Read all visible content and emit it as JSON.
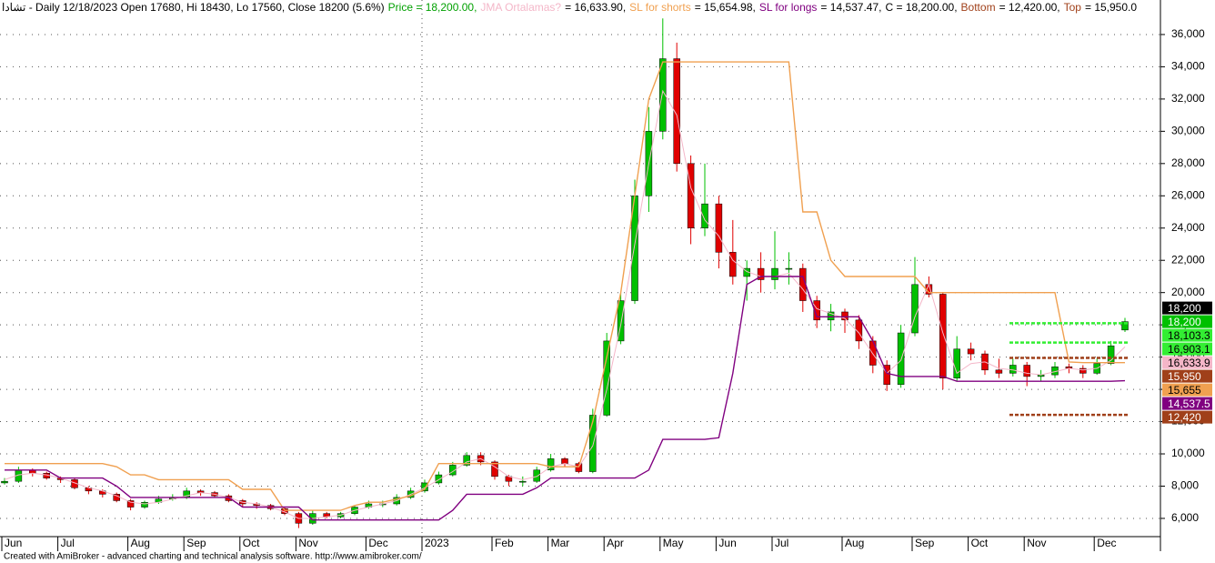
{
  "chart_data": {
    "type": "candlestick",
    "header": [
      {
        "text": "تشادا - Daily 12/18/2023 Open 17680, Hi 18430, Lo 17560, Close 18200 (5.6%)",
        "color": "#000000"
      },
      {
        "text": "Price = 18,200.00,",
        "color": "#00a000"
      }
    ],
    "header_tail": [
      {
        "text": "C = 18,200.00,",
        "color": "#000000"
      },
      {
        "text": "Bottom",
        "color": "#a0401a"
      },
      {
        "text": "= 12,420.00,",
        "color": "#000000"
      },
      {
        "text": "Top",
        "color": "#a0401a"
      },
      {
        "text": "= 15,950.0",
        "color": "#000000"
      }
    ],
    "footer": "Created with AmiBroker - advanced charting and technical analysis software. http://www.amibroker.com/",
    "categories": [
      "Jun",
      null,
      null,
      null,
      "Jul",
      null,
      null,
      null,
      null,
      "Aug",
      null,
      null,
      null,
      "Sep",
      null,
      null,
      null,
      "Oct",
      null,
      null,
      null,
      "Nov",
      null,
      null,
      null,
      null,
      "Dec",
      null,
      null,
      null,
      "2023",
      null,
      null,
      null,
      null,
      "Feb",
      null,
      null,
      null,
      "Mar",
      null,
      null,
      null,
      "Apr",
      null,
      null,
      null,
      "May",
      null,
      null,
      null,
      "Jun",
      null,
      null,
      null,
      "Jul",
      null,
      null,
      null,
      null,
      "Aug",
      null,
      null,
      null,
      null,
      "Sep",
      null,
      null,
      null,
      "Oct",
      null,
      null,
      null,
      "Nov",
      null,
      null,
      null,
      null,
      "Dec",
      null,
      null
    ],
    "open": [
      8200,
      8300,
      9000,
      8800,
      8500,
      8400,
      7900,
      7700,
      7500,
      7100,
      6700,
      7000,
      7200,
      7300,
      7700,
      7600,
      7400,
      7100,
      6900,
      6800,
      6600,
      6300,
      5700,
      6300,
      6100,
      6300,
      6700,
      6900,
      6900,
      7300,
      7700,
      8200,
      8700,
      9300,
      9900,
      9500,
      8600,
      8300,
      8300,
      9000,
      9700,
      9400,
      8900,
      12400,
      17000,
      19500,
      26000,
      30000,
      34500,
      28000,
      24000,
      25500,
      22500,
      21000,
      21500,
      20800,
      21500,
      21500,
      19500,
      18300,
      18800,
      18300,
      17000,
      15500,
      14300,
      17500,
      20500,
      19900,
      14700,
      16500,
      16200,
      15200,
      15000,
      15500,
      14800,
      14900,
      15400,
      15300,
      15000,
      15600,
      17680
    ],
    "high": [
      8500,
      9200,
      9100,
      8900,
      8600,
      8500,
      8000,
      7800,
      7600,
      7200,
      7100,
      7400,
      7500,
      7900,
      7800,
      7700,
      7500,
      7200,
      7000,
      6900,
      6700,
      6400,
      6500,
      6400,
      6400,
      6800,
      7100,
      7100,
      7500,
      7900,
      8400,
      8900,
      9500,
      10100,
      10100,
      9600,
      8700,
      8600,
      9200,
      10000,
      9800,
      9500,
      12800,
      17500,
      20000,
      27000,
      31500,
      37000,
      35500,
      28500,
      28000,
      26000,
      24500,
      22000,
      22500,
      23800,
      22500,
      21800,
      19800,
      19300,
      19000,
      18600,
      17300,
      15800,
      18000,
      22200,
      21000,
      20000,
      17300,
      16900,
      16400,
      15900,
      15900,
      15700,
      15200,
      15700,
      15600,
      15500,
      15900,
      17000,
      18430
    ],
    "low": [
      8100,
      8200,
      8600,
      8400,
      8200,
      7800,
      7500,
      7300,
      7000,
      6500,
      6600,
      6900,
      7100,
      7200,
      7400,
      7300,
      7000,
      6700,
      6600,
      6500,
      6200,
      5400,
      5600,
      6000,
      6000,
      6200,
      6600,
      6700,
      6800,
      7200,
      7600,
      8100,
      8600,
      9200,
      9300,
      8400,
      8000,
      8000,
      8200,
      8900,
      9200,
      8800,
      8800,
      12300,
      16800,
      19300,
      25000,
      29500,
      27500,
      23000,
      23500,
      21500,
      20500,
      19500,
      20000,
      20200,
      20500,
      18800,
      17800,
      17600,
      17500,
      16500,
      15000,
      13900,
      14100,
      17300,
      19700,
      14000,
      14500,
      15800,
      14900,
      14700,
      14800,
      14200,
      14500,
      14700,
      15000,
      14700,
      14900,
      15500,
      17560
    ],
    "close": [
      8300,
      9000,
      8800,
      8500,
      8400,
      7900,
      7700,
      7500,
      7100,
      6700,
      7000,
      7200,
      7300,
      7700,
      7600,
      7400,
      7100,
      6900,
      6800,
      6600,
      6300,
      5700,
      6300,
      6100,
      6300,
      6700,
      6900,
      6900,
      7300,
      7700,
      8200,
      8700,
      9300,
      9900,
      9500,
      8600,
      8300,
      8300,
      9000,
      9700,
      9400,
      8900,
      12400,
      17000,
      19500,
      26000,
      30000,
      34500,
      28000,
      24000,
      25500,
      22500,
      21000,
      21500,
      20800,
      21500,
      21500,
      19500,
      18300,
      18800,
      18300,
      17000,
      15500,
      14300,
      17500,
      20500,
      19900,
      14700,
      16500,
      16200,
      15200,
      15000,
      15500,
      14800,
      14900,
      15400,
      15300,
      15000,
      15600,
      16700,
      18200
    ],
    "up_color": "#00c000",
    "down_color": "#e00000",
    "series": [
      {
        "name": "JMA Ortalamas?",
        "readout": "= 16,633.90,",
        "color": "#f4b6c8",
        "values": [
          8400,
          8700,
          8800,
          8700,
          8500,
          8200,
          7900,
          7700,
          7400,
          7000,
          6900,
          7000,
          7200,
          7400,
          7600,
          7500,
          7300,
          7000,
          6900,
          6700,
          6400,
          6000,
          6000,
          6100,
          6200,
          6500,
          6700,
          6900,
          7100,
          7500,
          7900,
          8400,
          8900,
          9500,
          9700,
          9200,
          8600,
          8400,
          8600,
          9200,
          9400,
          9200,
          10500,
          14000,
          18000,
          23000,
          28000,
          32500,
          31000,
          26500,
          24500,
          23500,
          22000,
          21300,
          21000,
          21000,
          21200,
          20200,
          19000,
          18700,
          18400,
          17500,
          16200,
          15000,
          15800,
          18500,
          20500,
          17500,
          15000,
          15600,
          15700,
          15300,
          15200,
          15000,
          14900,
          15100,
          15300,
          15200,
          15300,
          15800,
          16633.9
        ]
      },
      {
        "name": "SL for shorts",
        "readout": " = 15,654.98,",
        "color": "#f0a050",
        "values": [
          9400,
          9400,
          9400,
          9400,
          9400,
          9400,
          9400,
          9400,
          9200,
          8700,
          8700,
          8400,
          8400,
          8400,
          8400,
          8400,
          8400,
          7800,
          7800,
          7800,
          6500,
          6500,
          6500,
          6500,
          6500,
          6800,
          7000,
          7000,
          7200,
          7400,
          7800,
          9400,
          9400,
          9400,
          9400,
          9400,
          9400,
          9400,
          9400,
          9200,
          9200,
          9200,
          12000,
          16000,
          20000,
          26000,
          32000,
          34300,
          34300,
          34300,
          34300,
          34300,
          34300,
          34300,
          34300,
          34300,
          34300,
          25000,
          25000,
          22000,
          21000,
          21000,
          21000,
          21000,
          21000,
          21000,
          20000,
          20000,
          20000,
          20000,
          20000,
          20000,
          20000,
          20000,
          20000,
          20000,
          15700,
          15655,
          15655,
          15655,
          15654.98
        ]
      },
      {
        "name": "SL for longs",
        "readout": "= 14,537.47,",
        "color": "#800080",
        "values": [
          9000,
          9000,
          9000,
          9000,
          8500,
          8500,
          8500,
          8500,
          8000,
          7300,
          7300,
          7300,
          7300,
          7300,
          7300,
          7300,
          7300,
          6700,
          6700,
          6700,
          6700,
          6700,
          5900,
          5900,
          5900,
          5900,
          5900,
          5900,
          5900,
          5900,
          5900,
          5900,
          6500,
          7500,
          7500,
          7500,
          7500,
          7500,
          7900,
          8500,
          8500,
          8500,
          8500,
          8500,
          8500,
          8500,
          9000,
          10900,
          10900,
          10900,
          10900,
          11000,
          15000,
          20500,
          21000,
          21000,
          21000,
          21000,
          18500,
          18500,
          18500,
          18500,
          17000,
          15000,
          14800,
          14800,
          14800,
          14800,
          14500,
          14500,
          14500,
          14500,
          14500,
          14500,
          14500,
          14500,
          14500,
          14500,
          14500,
          14500,
          14537.47
        ]
      }
    ],
    "ylim": [
      4870,
      38140
    ],
    "yticks": [
      {
        "value": 6000,
        "label": "6,000"
      },
      {
        "value": 8000,
        "label": "8,000"
      },
      {
        "value": 10000,
        "label": "10,000"
      },
      {
        "value": 12000,
        "label": "12,000"
      },
      {
        "value": 14000,
        "label": "14,000"
      },
      {
        "value": 16000,
        "label": "16,000"
      },
      {
        "value": 18000,
        "label": "18,000"
      },
      {
        "value": 20000,
        "label": "20,000"
      },
      {
        "value": 22000,
        "label": "22,000"
      },
      {
        "value": 24000,
        "label": "24,000"
      },
      {
        "value": 26000,
        "label": "26,000"
      },
      {
        "value": 28000,
        "label": "28,000"
      },
      {
        "value": 30000,
        "label": "30,000"
      },
      {
        "value": 32000,
        "label": "32,000"
      },
      {
        "value": 34000,
        "label": "34,000"
      },
      {
        "value": 36000,
        "label": "36,000"
      }
    ],
    "grid": true,
    "price_labels": [
      {
        "value": 18200,
        "label": "18,200",
        "bg": "#000000",
        "fg": "#ffffff"
      },
      {
        "value": 18200,
        "label": "18,200",
        "bg": "#00c000",
        "fg": "#ffffff"
      },
      {
        "value": 18103.3,
        "label": "18,103.3",
        "bg": "#33ee33",
        "fg": "#000000",
        "level": true
      },
      {
        "value": 16903.1,
        "label": "16,903.1",
        "bg": "#33ee33",
        "fg": "#000000",
        "level": true
      },
      {
        "value": 16633.9,
        "label": "16,633.9",
        "bg": "#f4b6c8",
        "fg": "#000000"
      },
      {
        "value": 15950,
        "label": "15,950",
        "bg": "#a0401a",
        "fg": "#ffffff",
        "level": true
      },
      {
        "value": 15655,
        "label": "15,655",
        "bg": "#f0a050",
        "fg": "#000000"
      },
      {
        "value": 14537.5,
        "label": "14,537.5",
        "bg": "#800080",
        "fg": "#ffffff"
      },
      {
        "value": 12420,
        "label": "12,420",
        "bg": "#a0401a",
        "fg": "#ffffff",
        "level": true
      }
    ]
  }
}
